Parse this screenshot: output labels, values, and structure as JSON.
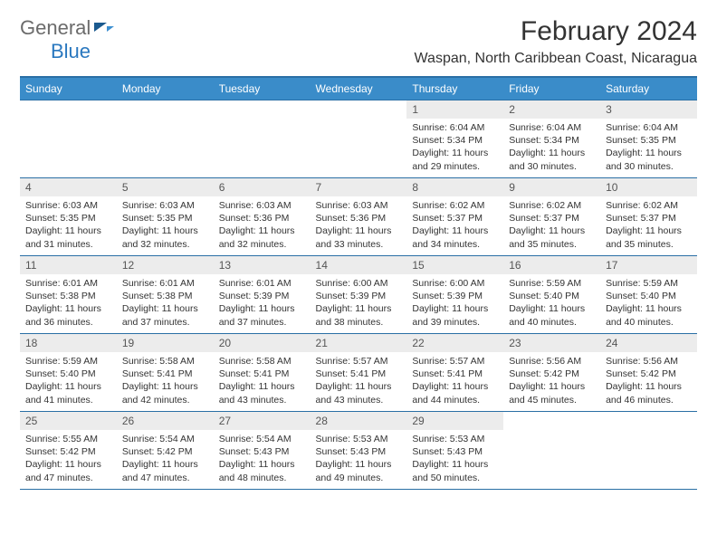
{
  "logo": {
    "text1": "General",
    "text2": "Blue"
  },
  "title": "February 2024",
  "location": "Waspan, North Caribbean Coast, Nicaragua",
  "header": {
    "bg_color": "#3a8cc9",
    "text_color": "#ffffff",
    "days": [
      "Sunday",
      "Monday",
      "Tuesday",
      "Wednesday",
      "Thursday",
      "Friday",
      "Saturday"
    ]
  },
  "style": {
    "border_color": "#2a6fa5",
    "daynum_bg": "#ececec",
    "font_family": "Arial"
  },
  "weeks": [
    [
      null,
      null,
      null,
      null,
      {
        "n": "1",
        "sr": "6:04 AM",
        "ss": "5:34 PM",
        "dl": "11 hours and 29 minutes."
      },
      {
        "n": "2",
        "sr": "6:04 AM",
        "ss": "5:34 PM",
        "dl": "11 hours and 30 minutes."
      },
      {
        "n": "3",
        "sr": "6:04 AM",
        "ss": "5:35 PM",
        "dl": "11 hours and 30 minutes."
      }
    ],
    [
      {
        "n": "4",
        "sr": "6:03 AM",
        "ss": "5:35 PM",
        "dl": "11 hours and 31 minutes."
      },
      {
        "n": "5",
        "sr": "6:03 AM",
        "ss": "5:35 PM",
        "dl": "11 hours and 32 minutes."
      },
      {
        "n": "6",
        "sr": "6:03 AM",
        "ss": "5:36 PM",
        "dl": "11 hours and 32 minutes."
      },
      {
        "n": "7",
        "sr": "6:03 AM",
        "ss": "5:36 PM",
        "dl": "11 hours and 33 minutes."
      },
      {
        "n": "8",
        "sr": "6:02 AM",
        "ss": "5:37 PM",
        "dl": "11 hours and 34 minutes."
      },
      {
        "n": "9",
        "sr": "6:02 AM",
        "ss": "5:37 PM",
        "dl": "11 hours and 35 minutes."
      },
      {
        "n": "10",
        "sr": "6:02 AM",
        "ss": "5:37 PM",
        "dl": "11 hours and 35 minutes."
      }
    ],
    [
      {
        "n": "11",
        "sr": "6:01 AM",
        "ss": "5:38 PM",
        "dl": "11 hours and 36 minutes."
      },
      {
        "n": "12",
        "sr": "6:01 AM",
        "ss": "5:38 PM",
        "dl": "11 hours and 37 minutes."
      },
      {
        "n": "13",
        "sr": "6:01 AM",
        "ss": "5:39 PM",
        "dl": "11 hours and 37 minutes."
      },
      {
        "n": "14",
        "sr": "6:00 AM",
        "ss": "5:39 PM",
        "dl": "11 hours and 38 minutes."
      },
      {
        "n": "15",
        "sr": "6:00 AM",
        "ss": "5:39 PM",
        "dl": "11 hours and 39 minutes."
      },
      {
        "n": "16",
        "sr": "5:59 AM",
        "ss": "5:40 PM",
        "dl": "11 hours and 40 minutes."
      },
      {
        "n": "17",
        "sr": "5:59 AM",
        "ss": "5:40 PM",
        "dl": "11 hours and 40 minutes."
      }
    ],
    [
      {
        "n": "18",
        "sr": "5:59 AM",
        "ss": "5:40 PM",
        "dl": "11 hours and 41 minutes."
      },
      {
        "n": "19",
        "sr": "5:58 AM",
        "ss": "5:41 PM",
        "dl": "11 hours and 42 minutes."
      },
      {
        "n": "20",
        "sr": "5:58 AM",
        "ss": "5:41 PM",
        "dl": "11 hours and 43 minutes."
      },
      {
        "n": "21",
        "sr": "5:57 AM",
        "ss": "5:41 PM",
        "dl": "11 hours and 43 minutes."
      },
      {
        "n": "22",
        "sr": "5:57 AM",
        "ss": "5:41 PM",
        "dl": "11 hours and 44 minutes."
      },
      {
        "n": "23",
        "sr": "5:56 AM",
        "ss": "5:42 PM",
        "dl": "11 hours and 45 minutes."
      },
      {
        "n": "24",
        "sr": "5:56 AM",
        "ss": "5:42 PM",
        "dl": "11 hours and 46 minutes."
      }
    ],
    [
      {
        "n": "25",
        "sr": "5:55 AM",
        "ss": "5:42 PM",
        "dl": "11 hours and 47 minutes."
      },
      {
        "n": "26",
        "sr": "5:54 AM",
        "ss": "5:42 PM",
        "dl": "11 hours and 47 minutes."
      },
      {
        "n": "27",
        "sr": "5:54 AM",
        "ss": "5:43 PM",
        "dl": "11 hours and 48 minutes."
      },
      {
        "n": "28",
        "sr": "5:53 AM",
        "ss": "5:43 PM",
        "dl": "11 hours and 49 minutes."
      },
      {
        "n": "29",
        "sr": "5:53 AM",
        "ss": "5:43 PM",
        "dl": "11 hours and 50 minutes."
      },
      null,
      null
    ]
  ],
  "labels": {
    "sunrise": "Sunrise:",
    "sunset": "Sunset:",
    "daylight": "Daylight:"
  }
}
